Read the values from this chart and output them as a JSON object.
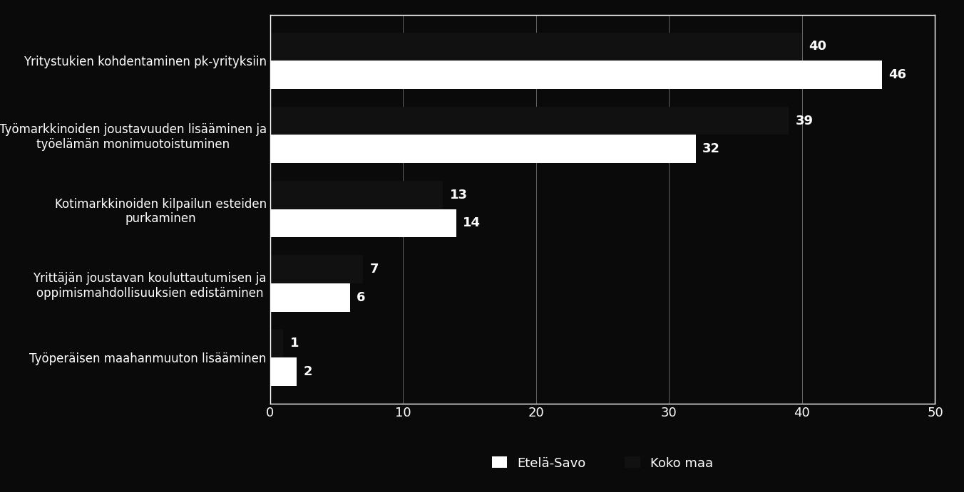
{
  "categories": [
    "Yritystukien kohdentaminen pk-yrityksiin",
    "Työmarkkinoiden joustavuuden lisääminen ja\ntyöelämän monimuotoistuminen",
    "Kotimarkkinoiden kilpailun esteiden\npurkaminen",
    "Yrittäjän joustavan kouluttautumisen ja\noppimismahdollisuuksien edistäminen",
    "Työperäisen maahanmuuton lisääminen"
  ],
  "etela_savo": [
    46,
    32,
    14,
    6,
    2
  ],
  "koko_maa": [
    40,
    39,
    13,
    7,
    1
  ],
  "bar_color_etela": "#ffffff",
  "bar_color_koko": "#111111",
  "background_color": "#0a0a0a",
  "text_color": "#ffffff",
  "xlim": [
    0,
    50
  ],
  "xticks": [
    0,
    10,
    20,
    30,
    40,
    50
  ],
  "legend_etela": "Etelä-Savo",
  "legend_koko": "Koko maa",
  "bar_height": 0.38,
  "label_fontsize": 13,
  "tick_fontsize": 13,
  "legend_fontsize": 13,
  "category_fontsize": 12
}
